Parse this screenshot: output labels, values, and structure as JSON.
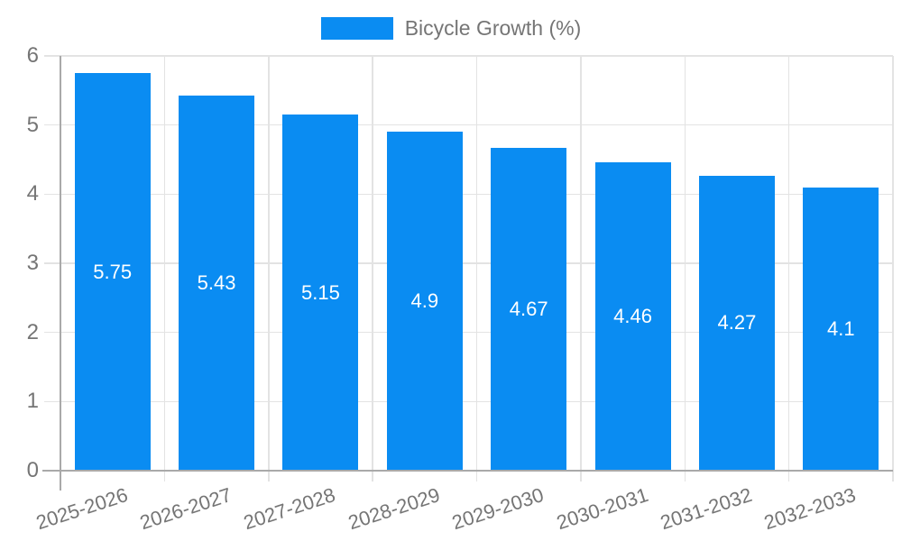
{
  "legend": {
    "label": "Bicycle Growth (%)"
  },
  "colors": {
    "bar": "#0a8cf2",
    "text_muted": "#757575",
    "grid": "#e3e3e3",
    "axis": "#a9a9a9",
    "value_label": "#ffffff",
    "background": "#ffffff"
  },
  "chart_data": {
    "type": "bar",
    "title": "",
    "xlabel": "",
    "ylabel": "",
    "categories": [
      "2025-2026",
      "2026-2027",
      "2027-2028",
      "2028-2029",
      "2029-2030",
      "2030-2031",
      "2031-2032",
      "2032-2033"
    ],
    "series": [
      {
        "name": "Bicycle Growth (%)",
        "values": [
          5.75,
          5.43,
          5.15,
          4.9,
          4.67,
          4.46,
          4.27,
          4.1
        ]
      }
    ],
    "bar_value_labels": [
      "5.75",
      "5.43",
      "5.15",
      "4.9",
      "4.67",
      "4.46",
      "4.27",
      "4.1"
    ],
    "ylim": [
      0,
      6
    ],
    "yticks": [
      0,
      1,
      2,
      3,
      4,
      5,
      6
    ],
    "grid": true,
    "legend_position": "top-center",
    "x_label_rotation_deg": -18
  }
}
